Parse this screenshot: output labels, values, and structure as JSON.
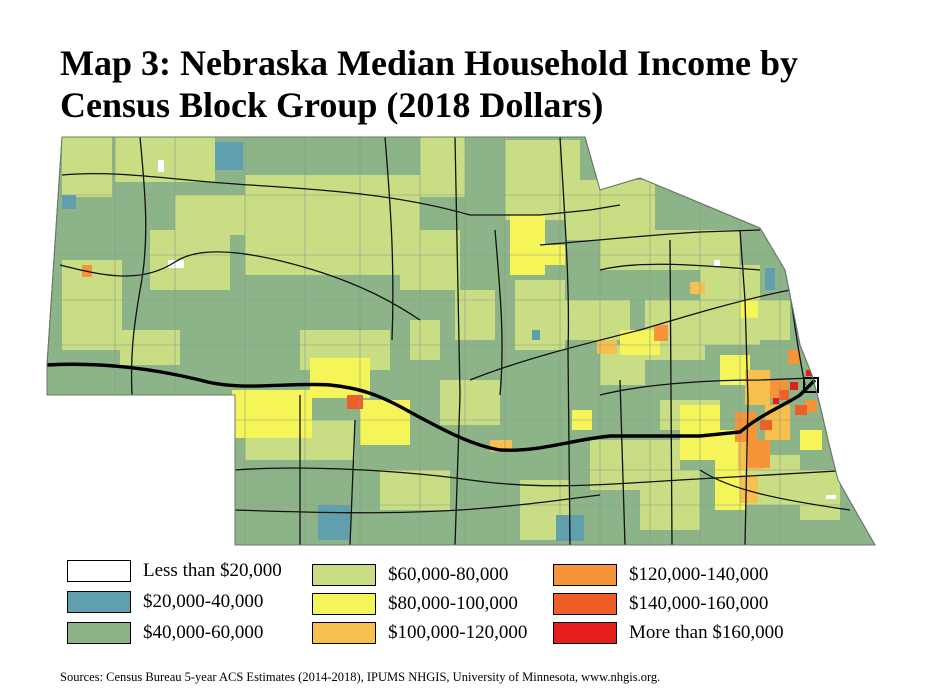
{
  "title": "Map 3: Nebraska Median Household Income by\nCensus Block Group (2018 Dollars)",
  "legend": [
    {
      "label": "Less than $20,000",
      "color": "#ffffff"
    },
    {
      "label": "$20,000-40,000",
      "color": "#5f9fae"
    },
    {
      "label": "$40,000-60,000",
      "color": "#8db489"
    },
    {
      "label": "$60,000-80,000",
      "color": "#c9dd84"
    },
    {
      "label": "$80,000-100,000",
      "color": "#f5f55a"
    },
    {
      "label": "$100,000-120,000",
      "color": "#f7c04e"
    },
    {
      "label": "$120,000-140,000",
      "color": "#f7943a"
    },
    {
      "label": "$140,000-160,000",
      "color": "#ee5f28"
    },
    {
      "label": "More than $160,000",
      "color": "#e51d1d"
    }
  ],
  "source": "Sources: Census Bureau 5-year ACS Estimates (2014-2018), IPUMS NHGIS, University of Minnesota, www.nhgis.org."
}
